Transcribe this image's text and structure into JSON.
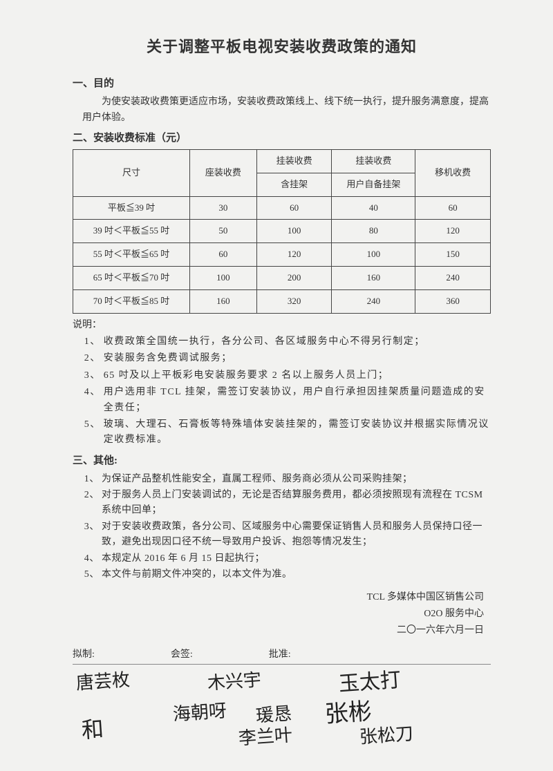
{
  "title": "关于调整平板电视安装收费政策的通知",
  "sec1": {
    "head": "一、目的",
    "body": "为使安装政收费策更适应市场，安装收费政策线上、线下统一执行，提升服务满意度，提高用户体验。"
  },
  "sec2": {
    "head": "二、安装收费标准（元）",
    "table": {
      "col_size": "尺寸",
      "col_seat": "座装收费",
      "col_hang": "挂装收费",
      "col_hang_sub1": "含挂架",
      "col_hang_sub2": "用户自备挂架",
      "col_move": "移机收费",
      "rows": [
        {
          "size": "平板≦39 吋",
          "seat": "30",
          "h1": "60",
          "h2": "40",
          "mv": "60"
        },
        {
          "size": "39 吋＜平板≦55 吋",
          "seat": "50",
          "h1": "100",
          "h2": "80",
          "mv": "120"
        },
        {
          "size": "55 吋＜平板≦65 吋",
          "seat": "60",
          "h1": "120",
          "h2": "100",
          "mv": "150"
        },
        {
          "size": "65 吋＜平板≦70 吋",
          "seat": "100",
          "h1": "200",
          "h2": "160",
          "mv": "240"
        },
        {
          "size": "70 吋＜平板≦85 吋",
          "seat": "160",
          "h1": "320",
          "h2": "240",
          "mv": "360"
        }
      ]
    },
    "notes_title": "说明：",
    "notes": [
      "收费政策全国统一执行，各分公司、各区域服务中心不得另行制定；",
      "安装服务含免费调试服务；",
      "65 吋及以上平板彩电安装服务要求 2 名以上服务人员上门；",
      "用户选用非 TCL 挂架，需签订安装协议，用户自行承担因挂架质量问题造成的安全责任；",
      "玻璃、大理石、石膏板等特殊墙体安装挂架的，需签订安装协议并根据实际情况议定收费标准。"
    ]
  },
  "sec3": {
    "head": "三、其他:",
    "items": [
      "为保证产品整机性能安全，直属工程师、服务商必须从公司采购挂架；",
      "对于服务人员上门安装调试的，无论是否结算服务费用，都必须按照现有流程在 TCSM 系统中回单；",
      "对于安装收费政策，各分公司、区域服务中心需要保证销售人员和服务人员保持口径一致，避免出现因口径不统一导致用户投诉、抱怨等情况发生；",
      "本规定从 2016 年 6 月 15 日起执行；",
      "本文件与前期文件冲突的，以本文件为准。"
    ]
  },
  "footer": {
    "l1": "TCL 多媒体中国区销售公司",
    "l2": "O2O 服务中心",
    "l3": "二〇一六年六月一日"
  },
  "sign": {
    "drafted": "拟制:",
    "cosign": "会签:",
    "approve": "批准:"
  }
}
